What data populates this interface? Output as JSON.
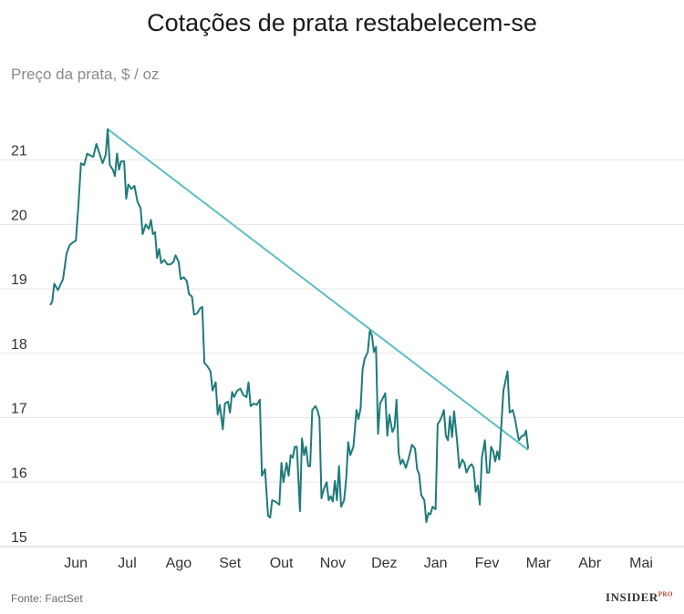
{
  "title": "Cotações de prata restabelecem-se",
  "source": "Fonte: FactSet",
  "logo": {
    "text": "INSIDER",
    "suffix": "PRO"
  },
  "colors": {
    "line": "#1f7a7a",
    "trend": "#5bbfc4",
    "grid": "#e6e6e6",
    "axis": "#cccccc"
  },
  "chart_data": {
    "type": "line",
    "title": "Cotações de prata restabelecem-se",
    "ylabel": "Preço da prata, $ / oz",
    "xlabel": "",
    "ylim": [
      15,
      21.9
    ],
    "yticks": [
      15,
      16,
      17,
      18,
      19,
      20,
      21
    ],
    "xlim": [
      0,
      12.12
    ],
    "x_tick_labels": [
      "Jun",
      "Jul",
      "Ago",
      "Set",
      "Out",
      "Nov",
      "Dez",
      "Jan",
      "Fev",
      "Mar",
      "Abr",
      "Mai"
    ],
    "x_tick_positions": [
      0.5,
      1.5,
      2.5,
      3.5,
      4.5,
      5.5,
      6.5,
      7.5,
      8.5,
      9.5,
      10.5,
      11.5
    ],
    "grid": true,
    "series": [
      {
        "values": [
          [
            0.0,
            18.75
          ],
          [
            0.04,
            18.8
          ],
          [
            0.08,
            19.08
          ],
          [
            0.15,
            18.98
          ],
          [
            0.25,
            19.15
          ],
          [
            0.32,
            19.55
          ],
          [
            0.38,
            19.68
          ],
          [
            0.44,
            19.72
          ],
          [
            0.5,
            19.75
          ],
          [
            0.55,
            20.3
          ],
          [
            0.6,
            20.95
          ],
          [
            0.66,
            20.92
          ],
          [
            0.72,
            21.1
          ],
          [
            0.78,
            21.07
          ],
          [
            0.84,
            21.05
          ],
          [
            0.9,
            21.25
          ],
          [
            0.96,
            21.1
          ],
          [
            1.02,
            20.95
          ],
          [
            1.08,
            21.08
          ],
          [
            1.12,
            21.48
          ],
          [
            1.16,
            20.92
          ],
          [
            1.22,
            20.85
          ],
          [
            1.26,
            20.75
          ],
          [
            1.3,
            21.1
          ],
          [
            1.34,
            20.85
          ],
          [
            1.38,
            20.98
          ],
          [
            1.44,
            20.98
          ],
          [
            1.48,
            20.4
          ],
          [
            1.52,
            20.62
          ],
          [
            1.58,
            20.55
          ],
          [
            1.64,
            20.6
          ],
          [
            1.7,
            20.35
          ],
          [
            1.76,
            20.25
          ],
          [
            1.8,
            19.85
          ],
          [
            1.86,
            20.0
          ],
          [
            1.92,
            19.93
          ],
          [
            1.96,
            20.07
          ],
          [
            2.0,
            19.85
          ],
          [
            2.04,
            19.88
          ],
          [
            2.08,
            19.48
          ],
          [
            2.12,
            19.62
          ],
          [
            2.16,
            19.4
          ],
          [
            2.22,
            19.45
          ],
          [
            2.28,
            19.38
          ],
          [
            2.34,
            19.38
          ],
          [
            2.4,
            19.42
          ],
          [
            2.44,
            19.52
          ],
          [
            2.5,
            19.42
          ],
          [
            2.54,
            19.15
          ],
          [
            2.6,
            19.18
          ],
          [
            2.66,
            19.12
          ],
          [
            2.7,
            18.92
          ],
          [
            2.76,
            18.88
          ],
          [
            2.8,
            18.6
          ],
          [
            2.86,
            18.62
          ],
          [
            2.92,
            18.7
          ],
          [
            2.96,
            18.72
          ],
          [
            3.0,
            17.85
          ],
          [
            3.06,
            17.8
          ],
          [
            3.12,
            17.72
          ],
          [
            3.16,
            17.42
          ],
          [
            3.22,
            17.55
          ],
          [
            3.26,
            17.05
          ],
          [
            3.3,
            17.2
          ],
          [
            3.36,
            16.82
          ],
          [
            3.4,
            17.22
          ],
          [
            3.46,
            17.25
          ],
          [
            3.5,
            17.08
          ],
          [
            3.54,
            17.4
          ],
          [
            3.58,
            17.32
          ],
          [
            3.64,
            17.42
          ],
          [
            3.7,
            17.45
          ],
          [
            3.76,
            17.35
          ],
          [
            3.82,
            17.32
          ],
          [
            3.86,
            17.55
          ],
          [
            3.9,
            17.18
          ],
          [
            3.96,
            17.22
          ],
          [
            4.02,
            17.2
          ],
          [
            4.08,
            17.28
          ],
          [
            4.12,
            16.1
          ],
          [
            4.18,
            16.2
          ],
          [
            4.24,
            15.48
          ],
          [
            4.28,
            15.45
          ],
          [
            4.32,
            15.72
          ],
          [
            4.38,
            15.7
          ],
          [
            4.46,
            15.65
          ],
          [
            4.5,
            16.3
          ],
          [
            4.54,
            16.0
          ],
          [
            4.6,
            16.3
          ],
          [
            4.64,
            16.1
          ],
          [
            4.68,
            16.42
          ],
          [
            4.72,
            16.38
          ],
          [
            4.76,
            16.55
          ],
          [
            4.8,
            16.55
          ],
          [
            4.86,
            15.55
          ],
          [
            4.9,
            16.68
          ],
          [
            4.94,
            16.42
          ],
          [
            4.98,
            16.55
          ],
          [
            5.02,
            16.25
          ],
          [
            5.06,
            16.25
          ],
          [
            5.1,
            17.12
          ],
          [
            5.16,
            17.18
          ],
          [
            5.2,
            17.12
          ],
          [
            5.24,
            17.0
          ],
          [
            5.28,
            15.75
          ],
          [
            5.32,
            15.88
          ],
          [
            5.38,
            16.0
          ],
          [
            5.42,
            15.72
          ],
          [
            5.46,
            15.78
          ],
          [
            5.5,
            15.7
          ],
          [
            5.54,
            16.02
          ],
          [
            5.58,
            15.72
          ],
          [
            5.62,
            16.25
          ],
          [
            5.66,
            15.62
          ],
          [
            5.72,
            15.72
          ],
          [
            5.76,
            16.05
          ],
          [
            5.8,
            16.62
          ],
          [
            5.84,
            16.42
          ],
          [
            5.9,
            16.55
          ],
          [
            5.96,
            17.12
          ],
          [
            6.0,
            16.98
          ],
          [
            6.04,
            17.15
          ],
          [
            6.08,
            17.75
          ],
          [
            6.12,
            17.92
          ],
          [
            6.18,
            18.02
          ],
          [
            6.22,
            18.35
          ],
          [
            6.26,
            18.28
          ],
          [
            6.3,
            18.02
          ],
          [
            6.34,
            18.1
          ],
          [
            6.38,
            16.75
          ],
          [
            6.42,
            17.22
          ],
          [
            6.46,
            17.28
          ],
          [
            6.52,
            17.38
          ],
          [
            6.56,
            16.72
          ],
          [
            6.6,
            17.05
          ],
          [
            6.66,
            16.78
          ],
          [
            6.7,
            16.85
          ],
          [
            6.74,
            17.28
          ],
          [
            6.78,
            16.45
          ],
          [
            6.82,
            16.28
          ],
          [
            6.86,
            16.35
          ],
          [
            6.92,
            16.22
          ],
          [
            6.98,
            16.38
          ],
          [
            7.04,
            16.58
          ],
          [
            7.1,
            16.52
          ],
          [
            7.14,
            16.2
          ],
          [
            7.18,
            16.12
          ],
          [
            7.22,
            15.8
          ],
          [
            7.28,
            15.72
          ],
          [
            7.32,
            15.38
          ],
          [
            7.36,
            15.52
          ],
          [
            7.4,
            15.5
          ],
          [
            7.44,
            15.62
          ],
          [
            7.5,
            15.58
          ],
          [
            7.54,
            16.9
          ],
          [
            7.58,
            16.95
          ],
          [
            7.62,
            17.02
          ],
          [
            7.66,
            17.12
          ],
          [
            7.7,
            16.72
          ],
          [
            7.74,
            16.65
          ],
          [
            7.78,
            17.02
          ],
          [
            7.82,
            16.7
          ],
          [
            7.86,
            17.1
          ],
          [
            7.92,
            16.62
          ],
          [
            7.96,
            16.22
          ],
          [
            8.02,
            16.35
          ],
          [
            8.06,
            16.3
          ],
          [
            8.1,
            16.15
          ],
          [
            8.16,
            16.25
          ],
          [
            8.2,
            16.28
          ],
          [
            8.24,
            16.22
          ],
          [
            8.28,
            15.85
          ],
          [
            8.32,
            15.95
          ],
          [
            8.36,
            15.65
          ],
          [
            8.4,
            16.38
          ],
          [
            8.46,
            16.65
          ],
          [
            8.5,
            16.15
          ],
          [
            8.54,
            16.15
          ],
          [
            8.58,
            16.55
          ],
          [
            8.62,
            16.48
          ],
          [
            8.66,
            16.32
          ],
          [
            8.7,
            16.48
          ],
          [
            8.74,
            16.35
          ],
          [
            8.78,
            16.9
          ],
          [
            8.82,
            17.42
          ],
          [
            8.9,
            17.72
          ],
          [
            8.94,
            17.08
          ],
          [
            9.0,
            17.12
          ],
          [
            9.04,
            17.0
          ],
          [
            9.08,
            16.82
          ],
          [
            9.12,
            16.65
          ],
          [
            9.18,
            16.72
          ],
          [
            9.22,
            16.72
          ],
          [
            9.26,
            16.8
          ],
          [
            9.3,
            16.52
          ]
        ]
      }
    ],
    "trendline": {
      "from": [
        1.12,
        21.48
      ],
      "to": [
        9.3,
        16.5
      ]
    }
  }
}
